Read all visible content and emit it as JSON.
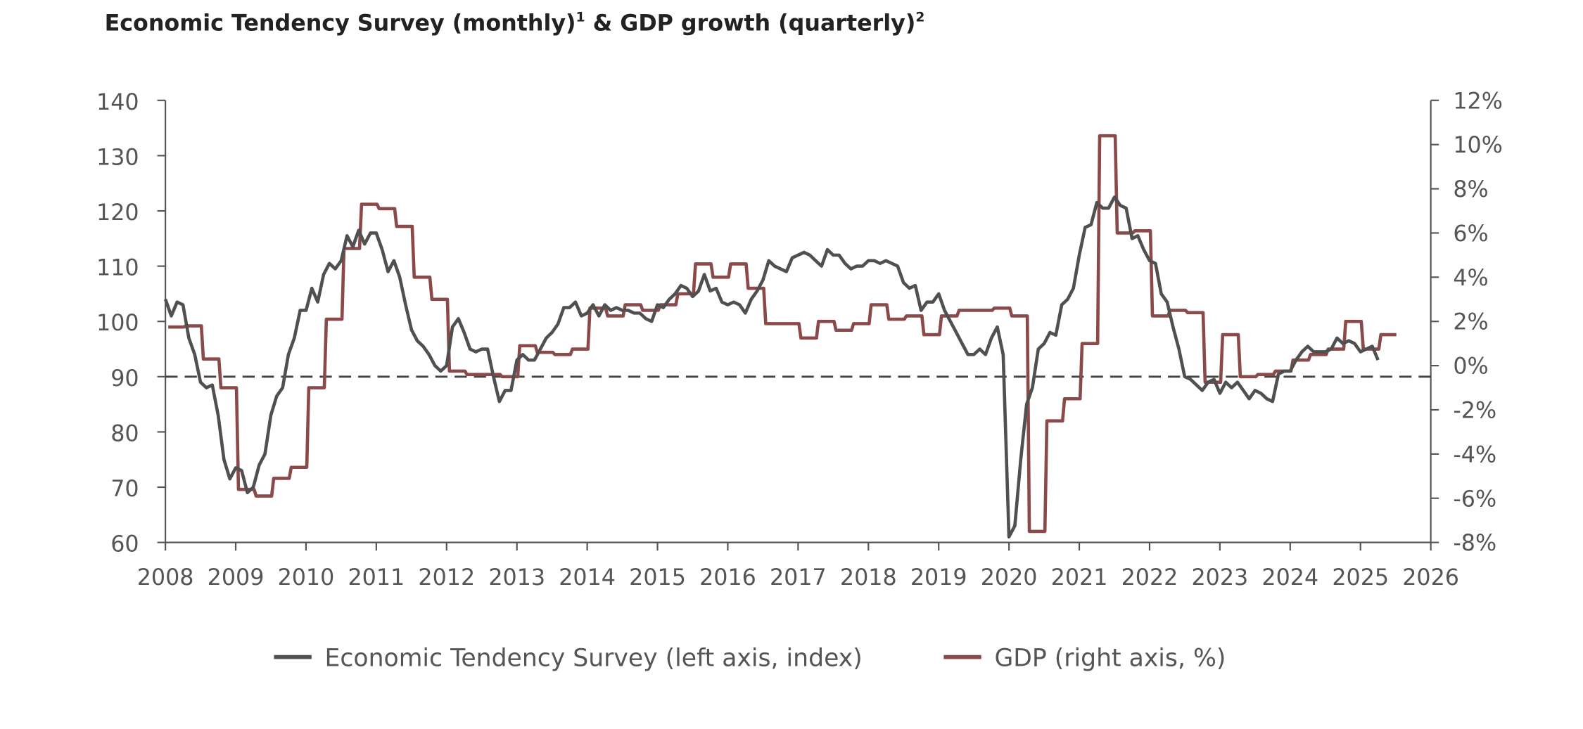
{
  "chart_data": {
    "type": "line",
    "title": "Economic Tendency Survey (monthly)",
    "title_sup1": "1",
    "title_mid": " & GDP growth (quarterly)",
    "title_sup2": "2",
    "x_ticks": [
      "2008",
      "2009",
      "2010",
      "2011",
      "2012",
      "2013",
      "2014",
      "2015",
      "2016",
      "2017",
      "2018",
      "2019",
      "2020",
      "2021",
      "2022",
      "2023",
      "2024",
      "2025",
      "2026"
    ],
    "xlim": [
      2008,
      2026
    ],
    "y_left": {
      "lim": [
        60,
        140
      ],
      "ticks": [
        "60",
        "70",
        "80",
        "90",
        "100",
        "110",
        "120",
        "130",
        "140"
      ]
    },
    "y_right": {
      "lim": [
        -8,
        12
      ],
      "ticks": [
        "-8%",
        "-6%",
        "-4%",
        "-2%",
        "0%",
        "2%",
        "4%",
        "6%",
        "8%",
        "10%",
        "12%"
      ]
    },
    "reference_line": {
      "axis": "left",
      "value": 90,
      "style": "dashed"
    },
    "grid": false,
    "legend_position": "bottom",
    "series": [
      {
        "name": "Economic Tendency Survey (left axis, index)",
        "axis": "left",
        "frequency": "monthly",
        "start": "2008-01",
        "color": "#505050",
        "values": [
          104,
          101,
          103.5,
          103,
          97,
          94,
          89,
          88,
          88.5,
          83,
          75,
          71.5,
          73.5,
          73,
          69,
          70,
          74,
          76,
          83,
          86.5,
          88,
          94,
          97,
          102,
          102,
          106,
          103.5,
          108.5,
          110.5,
          109.5,
          111,
          115.5,
          113.5,
          116.5,
          114,
          116,
          116,
          113,
          109,
          111,
          108,
          103,
          98.5,
          96.5,
          95.5,
          94,
          92,
          91,
          92,
          99,
          100.5,
          98,
          95,
          94.5,
          95,
          95,
          90,
          85.5,
          87.5,
          87.5,
          93,
          94,
          93,
          93,
          95,
          97,
          98,
          99.5,
          102.5,
          102.5,
          103.5,
          101,
          101.5,
          103,
          101,
          103,
          102,
          102.5,
          102,
          102,
          101.5,
          101.5,
          100.5,
          100,
          103,
          102.5,
          104,
          105,
          106.5,
          106,
          104.5,
          105.5,
          108.5,
          105.5,
          106,
          103.5,
          103,
          103.5,
          103,
          101.5,
          104,
          105.5,
          107.5,
          111,
          110,
          109.5,
          109,
          111.5,
          112,
          112.5,
          112,
          111,
          110,
          113,
          112,
          112,
          110.5,
          109.5,
          110,
          110,
          111,
          111,
          110.5,
          111,
          110.5,
          110,
          107,
          106,
          106.5,
          102,
          103.5,
          103.5,
          105,
          102,
          100,
          98,
          96,
          94,
          94,
          95,
          94,
          97,
          99,
          94,
          61,
          63,
          75,
          85,
          88,
          95,
          96,
          98,
          97.5,
          103,
          104,
          106,
          112,
          117,
          117.5,
          121.5,
          120.5,
          120.5,
          122.5,
          121,
          120.5,
          115,
          115.5,
          113,
          111,
          110.5,
          105,
          103.5,
          99,
          95,
          90,
          89.5,
          88.5,
          87.5,
          89,
          89.5,
          87,
          89,
          88,
          89,
          87.5,
          86,
          87.5,
          87,
          86,
          85.5,
          90.5,
          91,
          91,
          93,
          94.5,
          95.5,
          94.5,
          94.5,
          94.5,
          95,
          97,
          96,
          96.5,
          96,
          94.5,
          95,
          95.5,
          93
        ]
      },
      {
        "name": "GDP (right axis, %)",
        "axis": "right",
        "frequency": "quarterly",
        "start": "2008-Q1",
        "color": "#8B4A4A",
        "values": [
          1.75,
          1.8,
          0.3,
          -1,
          -5.6,
          -5.9,
          -5.1,
          -4.6,
          -1,
          2.1,
          5.3,
          7.3,
          7.1,
          6.3,
          4,
          3,
          -0.25,
          -0.4,
          -0.4,
          -0.5,
          0.9,
          0.6,
          0.5,
          0.75,
          2.6,
          2.25,
          2.75,
          2.5,
          2.75,
          3.25,
          4.6,
          4,
          4.6,
          3.5,
          1.9,
          1.9,
          1.25,
          2,
          1.6,
          1.9,
          2.75,
          2.1,
          2.25,
          1.4,
          2.25,
          2.5,
          2.5,
          2.6,
          2.25,
          -7.5,
          -2.5,
          -1.5,
          1,
          10.4,
          6,
          6.1,
          2.25,
          2.5,
          2.4,
          -0.75,
          1.4,
          -0.5,
          -0.4,
          -0.25,
          0.25,
          0.5,
          0.75,
          2,
          0.75,
          1.4
        ]
      }
    ]
  }
}
